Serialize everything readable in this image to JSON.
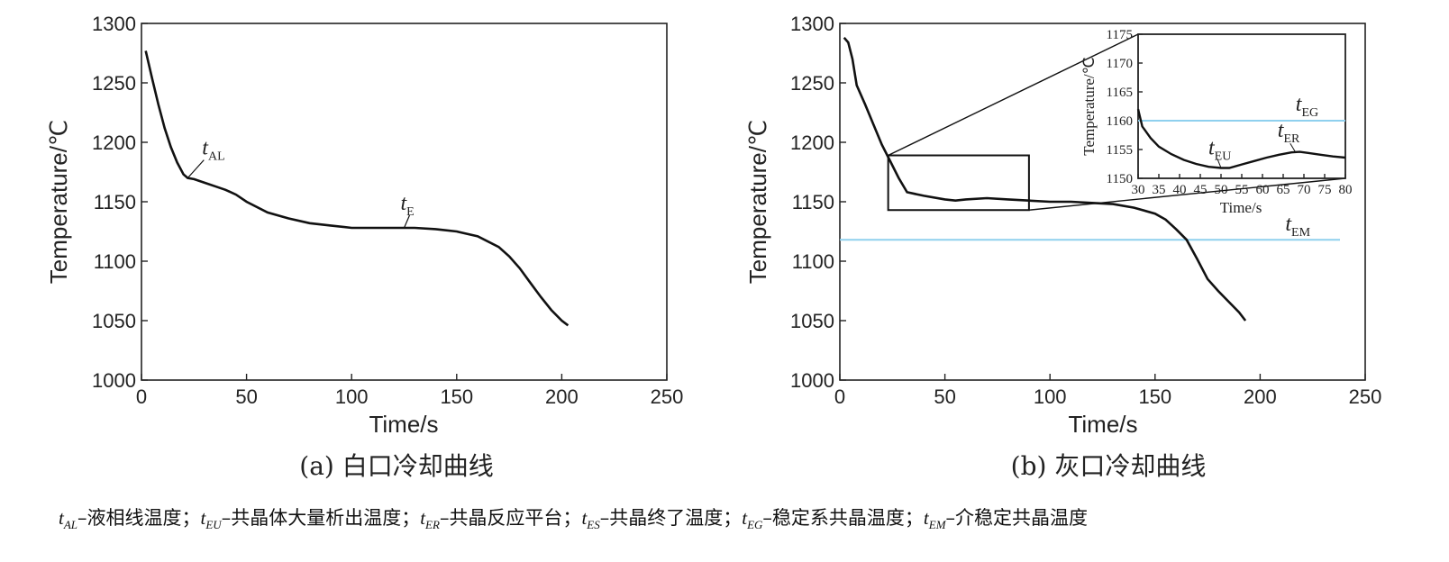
{
  "chart_data": [
    {
      "type": "line",
      "caption": "(a) 白口冷却曲线",
      "xlabel": "Time/s",
      "ylabel": "Temperature/℃",
      "xlim": [
        0,
        250
      ],
      "ylim": [
        1000,
        1300
      ],
      "xticks": [
        "0",
        "50",
        "100",
        "150",
        "200",
        "250"
      ],
      "yticks": [
        "1000",
        "1050",
        "1100",
        "1150",
        "1200",
        "1250",
        "1300"
      ],
      "series": [
        {
          "x": [
            2,
            5,
            8,
            11,
            14,
            17,
            20,
            22,
            25,
            30,
            35,
            40,
            45,
            50,
            60,
            70,
            80,
            90,
            100,
            110,
            120,
            130,
            140,
            150,
            160,
            170,
            175,
            180,
            185,
            190,
            195,
            200,
            203
          ],
          "y": [
            1277,
            1254,
            1232,
            1212,
            1196,
            1183,
            1173,
            1170,
            1169,
            1166,
            1163,
            1160,
            1156,
            1150,
            1141,
            1136,
            1132,
            1130,
            1128,
            1128,
            1128,
            1128,
            1127,
            1125,
            1121,
            1112,
            1104,
            1094,
            1082,
            1070,
            1059,
            1050,
            1046
          ]
        }
      ],
      "annotations": [
        {
          "main": "t",
          "sub": "AL",
          "x": 22,
          "y": 1170
        },
        {
          "main": "t",
          "sub": "E",
          "x": 125,
          "y": 1128
        }
      ]
    },
    {
      "type": "line",
      "caption": "(b) 灰口冷却曲线",
      "xlabel": "Time/s",
      "ylabel": "Temperature/℃",
      "xlim": [
        0,
        250
      ],
      "ylim": [
        1000,
        1300
      ],
      "xticks": [
        "0",
        "50",
        "100",
        "150",
        "200",
        "250"
      ],
      "yticks": [
        "1000",
        "1050",
        "1100",
        "1150",
        "1200",
        "1250",
        "1300"
      ],
      "series": [
        {
          "x": [
            2,
            4,
            6,
            8,
            12,
            16,
            20,
            24,
            28,
            32,
            40,
            50,
            55,
            60,
            70,
            80,
            90,
            100,
            110,
            120,
            130,
            140,
            150,
            155,
            160,
            165,
            170,
            175,
            180,
            185,
            190,
            193
          ],
          "y": [
            1288,
            1284,
            1270,
            1248,
            1232,
            1215,
            1198,
            1184,
            1170,
            1158,
            1155,
            1152,
            1151,
            1152,
            1153,
            1152,
            1151,
            1150,
            1150,
            1149,
            1148,
            1145,
            1140,
            1135,
            1127,
            1118,
            1102,
            1085,
            1075,
            1066,
            1057,
            1050
          ]
        }
      ],
      "reference_line": {
        "y": 1118,
        "label_main": "t",
        "label_sub": "EM",
        "color": "#8fd0ee"
      },
      "zoom_box": {
        "x": [
          23,
          90
        ],
        "y": [
          1143,
          1189
        ]
      },
      "inset": {
        "xlabel": "Time/s",
        "ylabel": "Temperature/℃",
        "xlim": [
          30,
          80
        ],
        "ylim": [
          1150,
          1175
        ],
        "xticks": [
          "30",
          "35",
          "40",
          "45",
          "50",
          "55",
          "60",
          "65",
          "70",
          "75",
          "80"
        ],
        "yticks": [
          "1150",
          "1155",
          "1160",
          "1165",
          "1170",
          "1175"
        ],
        "series": [
          {
            "x": [
              30,
              31,
              33,
              35,
              38,
              41,
              44,
              47,
              50,
              52,
              55,
              58,
              61,
              64,
              67,
              69,
              71,
              74,
              77,
              80
            ],
            "y": [
              1162,
              1159,
              1157,
              1155.5,
              1154.2,
              1153.2,
              1152.5,
              1152.0,
              1151.8,
              1151.8,
              1152.4,
              1153.0,
              1153.6,
              1154.1,
              1154.5,
              1154.6,
              1154.4,
              1154.1,
              1153.8,
              1153.6
            ]
          }
        ],
        "reference_line": {
          "y": 1160,
          "color": "#8fd0ee"
        },
        "annotations": [
          {
            "main": "t",
            "sub": "EU",
            "x": 50,
            "y": 1151.8
          },
          {
            "main": "t",
            "sub": "ER",
            "x": 68,
            "y": 1154.5
          },
          {
            "main": "t",
            "sub": "EG",
            "x": 78,
            "y": 1160
          }
        ]
      }
    }
  ],
  "legend_note": [
    {
      "main": "t",
      "sub": "AL",
      "text": "–液相线温度；"
    },
    {
      "main": "t",
      "sub": "EU",
      "text": "–共晶体大量析出温度；"
    },
    {
      "main": "t",
      "sub": "ER",
      "text": "–共晶反应平台；"
    },
    {
      "main": "t",
      "sub": "ES",
      "text": "–共晶终了温度；"
    },
    {
      "main": "t",
      "sub": "EG",
      "text": "–稳定系共晶温度；"
    },
    {
      "main": "t",
      "sub": "EM",
      "text": "–介稳定共晶温度"
    }
  ]
}
